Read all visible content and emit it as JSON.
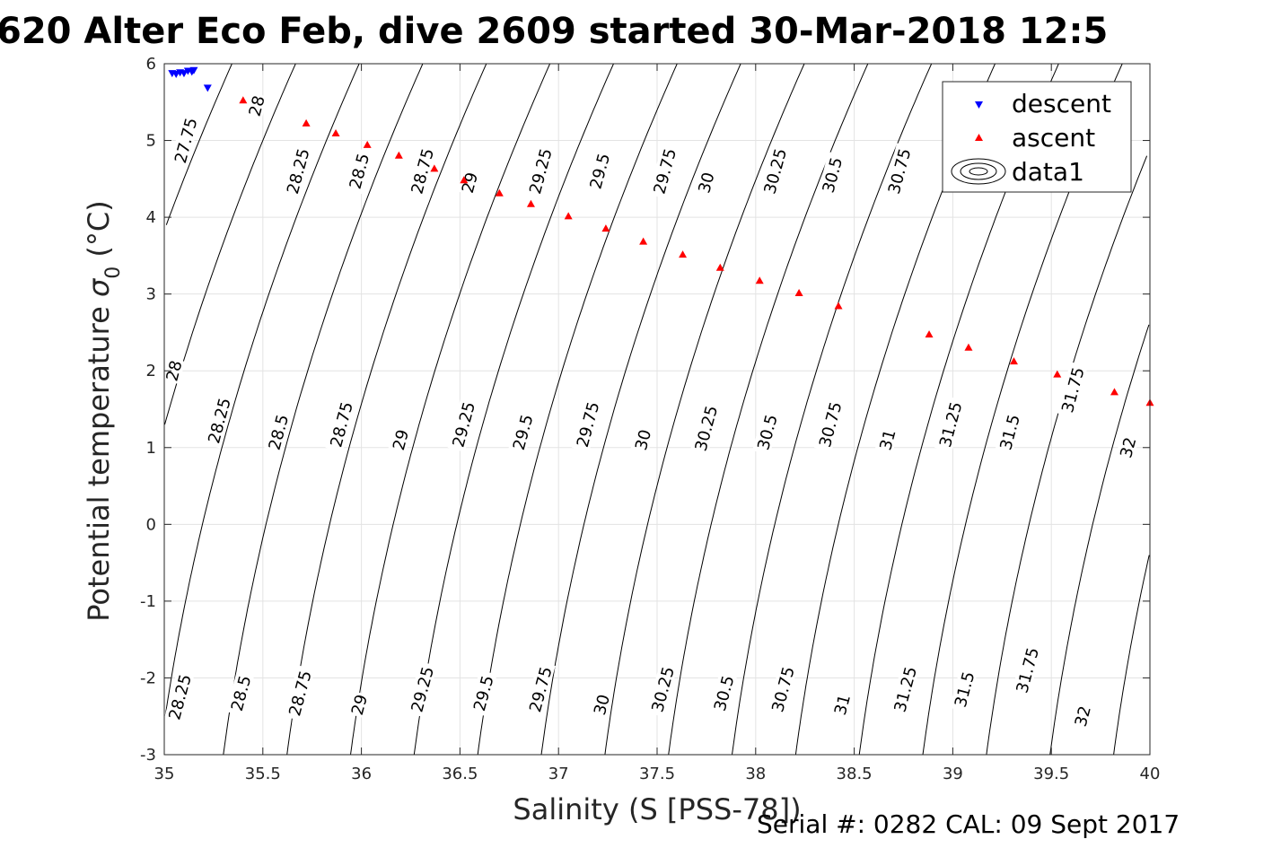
{
  "title": "620 Alter Eco Feb, dive 2609 started 30-Mar-2018 12:5",
  "footer": "Serial #: 0282  CAL: 09 Sept 2017",
  "chart_data": {
    "type": "scatter",
    "xlabel": "Salinity (S [PSS-78])",
    "ylabel_main": "Potential temperature ",
    "ylabel_sigma": "σ",
    "ylabel_sub": "0",
    "ylabel_unit": " (°C)",
    "xlim": [
      35,
      40
    ],
    "ylim": [
      -3,
      6
    ],
    "xticks": [
      "35",
      "35.5",
      "36",
      "36.5",
      "37",
      "37.5",
      "38",
      "38.5",
      "39",
      "39.5",
      "40"
    ],
    "yticks": [
      "-3",
      "-2",
      "-1",
      "0",
      "1",
      "2",
      "3",
      "4",
      "5",
      "6"
    ],
    "grid": true,
    "legend_position": "top-right",
    "legend": [
      "descent",
      "ascent",
      "data1"
    ],
    "series": [
      {
        "name": "descent",
        "color": "#0000ff",
        "marker": "triangle-down",
        "x": [
          35.04,
          35.06,
          35.08,
          35.1,
          35.12,
          35.14,
          35.15,
          35.22
        ],
        "y": [
          5.87,
          5.86,
          5.88,
          5.87,
          5.9,
          5.89,
          5.91,
          5.68
        ]
      },
      {
        "name": "ascent",
        "color": "#ff0000",
        "marker": "triangle-up",
        "x": [
          35.4,
          35.72,
          35.87,
          36.03,
          36.19,
          36.37,
          36.52,
          36.7,
          36.86,
          37.05,
          37.24,
          37.43,
          37.63,
          37.82,
          38.02,
          38.22,
          38.42,
          38.88,
          39.08,
          39.31,
          39.53,
          39.82,
          40.0
        ],
        "y": [
          5.53,
          5.23,
          5.1,
          4.95,
          4.81,
          4.64,
          4.49,
          4.32,
          4.18,
          4.02,
          3.86,
          3.69,
          3.52,
          3.35,
          3.18,
          3.02,
          2.85,
          2.48,
          2.31,
          2.13,
          1.96,
          1.73,
          1.59
        ]
      }
    ],
    "contours": {
      "name": "data1",
      "levels": [
        "27.75",
        "28",
        "28.25",
        "28.5",
        "28.75",
        "29",
        "29.25",
        "29.5",
        "29.75",
        "30",
        "30.25",
        "30.5",
        "30.75",
        "31",
        "31.25",
        "31.5",
        "31.75",
        "32"
      ],
      "labels_top": [
        {
          "text": "27.75",
          "x": 35.11,
          "y": 5.0
        },
        {
          "text": "28",
          "x": 35.47,
          "y": 5.45
        },
        {
          "text": "28.25",
          "x": 35.68,
          "y": 4.6
        },
        {
          "text": "28.5",
          "x": 35.99,
          "y": 4.6
        },
        {
          "text": "28.75",
          "x": 36.31,
          "y": 4.6
        },
        {
          "text": "29",
          "x": 36.55,
          "y": 4.45
        },
        {
          "text": "29.25",
          "x": 36.91,
          "y": 4.6
        },
        {
          "text": "29.5",
          "x": 37.21,
          "y": 4.6
        },
        {
          "text": "29.75",
          "x": 37.54,
          "y": 4.6
        },
        {
          "text": "30",
          "x": 37.75,
          "y": 4.45
        },
        {
          "text": "30.25",
          "x": 38.1,
          "y": 4.6
        },
        {
          "text": "30.5",
          "x": 38.39,
          "y": 4.55
        },
        {
          "text": "30.75",
          "x": 38.73,
          "y": 4.6
        },
        {
          "text": "28",
          "x": 35.05,
          "y": 2.0
        },
        {
          "text": "28.25",
          "x": 35.28,
          "y": 1.35
        },
        {
          "text": "28.5",
          "x": 35.58,
          "y": 1.2
        },
        {
          "text": "28.75",
          "x": 35.9,
          "y": 1.3
        },
        {
          "text": "29",
          "x": 36.2,
          "y": 1.1
        },
        {
          "text": "29.25",
          "x": 36.52,
          "y": 1.3
        },
        {
          "text": "29.5",
          "x": 36.82,
          "y": 1.2
        },
        {
          "text": "29.75",
          "x": 37.15,
          "y": 1.3
        },
        {
          "text": "30",
          "x": 37.43,
          "y": 1.1
        },
        {
          "text": "30.25",
          "x": 37.75,
          "y": 1.25
        },
        {
          "text": "30.5",
          "x": 38.06,
          "y": 1.2
        },
        {
          "text": "30.75",
          "x": 38.38,
          "y": 1.3
        },
        {
          "text": "31",
          "x": 38.67,
          "y": 1.1
        },
        {
          "text": "31.25",
          "x": 38.99,
          "y": 1.3
        },
        {
          "text": "31.5",
          "x": 39.29,
          "y": 1.2
        },
        {
          "text": "31.75",
          "x": 39.61,
          "y": 1.75
        },
        {
          "text": "32",
          "x": 39.89,
          "y": 1.0
        },
        {
          "text": "28.25",
          "x": 35.08,
          "y": -2.25
        },
        {
          "text": "28.5",
          "x": 35.39,
          "y": -2.2
        },
        {
          "text": "28.75",
          "x": 35.69,
          "y": -2.2
        },
        {
          "text": "29",
          "x": 35.99,
          "y": -2.35
        },
        {
          "text": "29.25",
          "x": 36.31,
          "y": -2.15
        },
        {
          "text": "29.5",
          "x": 36.62,
          "y": -2.2
        },
        {
          "text": "29.75",
          "x": 36.91,
          "y": -2.15
        },
        {
          "text": "30",
          "x": 37.22,
          "y": -2.35
        },
        {
          "text": "30.25",
          "x": 37.53,
          "y": -2.15
        },
        {
          "text": "30.5",
          "x": 37.84,
          "y": -2.2
        },
        {
          "text": "30.75",
          "x": 38.14,
          "y": -2.15
        },
        {
          "text": "31",
          "x": 38.44,
          "y": -2.35
        },
        {
          "text": "31.25",
          "x": 38.76,
          "y": -2.15
        },
        {
          "text": "31.5",
          "x": 39.06,
          "y": -2.15
        },
        {
          "text": "31.75",
          "x": 39.38,
          "y": -1.9
        },
        {
          "text": "32",
          "x": 39.66,
          "y": -2.5
        }
      ]
    }
  }
}
